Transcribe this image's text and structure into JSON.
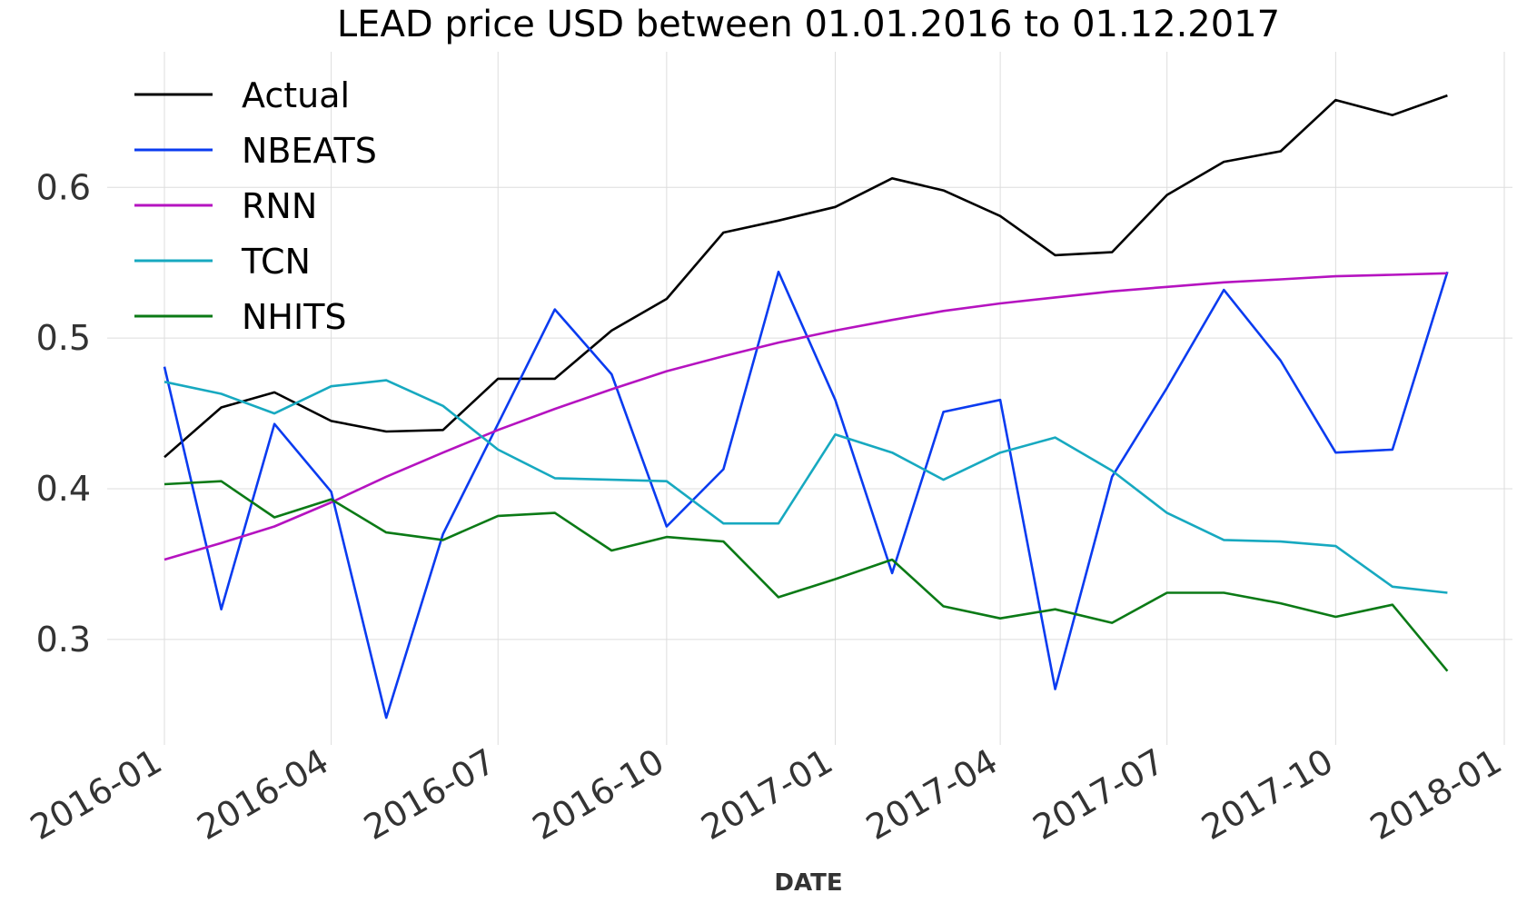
{
  "chart_data": {
    "type": "line",
    "title": "LEAD price USD between 01.01.2016 to 01.12.2017",
    "xlabel": "DATE",
    "ylabel": "",
    "x": [
      "2016-01-01",
      "2016-02-01",
      "2016-03-01",
      "2016-04-01",
      "2016-05-01",
      "2016-06-01",
      "2016-07-01",
      "2016-08-01",
      "2016-09-01",
      "2016-10-01",
      "2016-11-01",
      "2016-12-01",
      "2017-01-01",
      "2017-02-01",
      "2017-03-01",
      "2017-04-01",
      "2017-05-01",
      "2017-06-01",
      "2017-07-01",
      "2017-08-01",
      "2017-09-01",
      "2017-10-01",
      "2017-11-01",
      "2017-12-01"
    ],
    "x_ticks": [
      "2016-01",
      "2016-04",
      "2016-07",
      "2016-10",
      "2017-01",
      "2017-04",
      "2017-07",
      "2017-10",
      "2018-01"
    ],
    "x_range": [
      "2016-01-01",
      "2018-01-01"
    ],
    "y_ticks": [
      "0.3",
      "0.4",
      "0.5",
      "0.6"
    ],
    "ylim": [
      0.23,
      0.69
    ],
    "grid": true,
    "legend_position": "top-left",
    "series": [
      {
        "name": "Actual",
        "color": "#000000",
        "values": [
          0.421,
          0.454,
          0.464,
          0.445,
          0.438,
          0.439,
          0.473,
          0.473,
          0.505,
          0.526,
          0.57,
          0.578,
          0.587,
          0.606,
          0.598,
          0.581,
          0.555,
          0.557,
          0.595,
          0.617,
          0.624,
          0.658,
          0.648,
          0.661
        ]
      },
      {
        "name": "NBEATS",
        "color": "#0a3bf0",
        "values": [
          0.481,
          0.32,
          0.443,
          0.398,
          0.248,
          0.37,
          0.443,
          0.519,
          0.476,
          0.375,
          0.413,
          0.544,
          0.459,
          0.344,
          0.451,
          0.459,
          0.267,
          0.408,
          0.467,
          0.532,
          0.485,
          0.424,
          0.426,
          0.544
        ]
      },
      {
        "name": "RNN",
        "color": "#b513c0",
        "values": [
          0.353,
          0.364,
          0.375,
          0.391,
          0.408,
          0.424,
          0.439,
          0.453,
          0.466,
          0.478,
          0.488,
          0.497,
          0.505,
          0.512,
          0.518,
          0.523,
          0.527,
          0.531,
          0.534,
          0.537,
          0.539,
          0.541,
          0.542,
          0.543
        ]
      },
      {
        "name": "TCN",
        "color": "#17a9c0",
        "values": [
          0.471,
          0.463,
          0.45,
          0.468,
          0.472,
          0.455,
          0.426,
          0.407,
          0.406,
          0.405,
          0.377,
          0.377,
          0.436,
          0.424,
          0.406,
          0.424,
          0.434,
          0.412,
          0.384,
          0.366,
          0.365,
          0.362,
          0.335,
          0.331
        ]
      },
      {
        "name": "NHITS",
        "color": "#0b7a16",
        "values": [
          0.403,
          0.405,
          0.381,
          0.393,
          0.371,
          0.366,
          0.382,
          0.384,
          0.359,
          0.368,
          0.365,
          0.328,
          0.34,
          0.353,
          0.322,
          0.314,
          0.32,
          0.311,
          0.331,
          0.331,
          0.324,
          0.315,
          0.323,
          0.279
        ]
      }
    ]
  }
}
